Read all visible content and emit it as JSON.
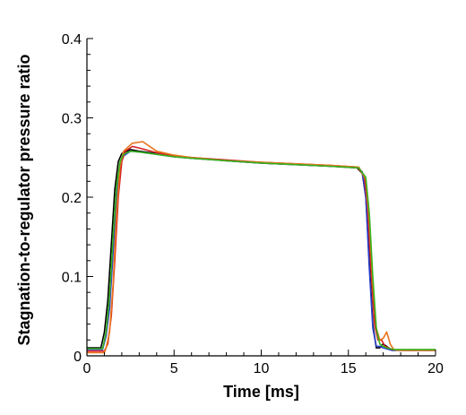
{
  "chart_data": {
    "type": "line",
    "title": "",
    "xlabel": "Time [ms]",
    "ylabel": "Stagnation-to-regulator pressure ratio",
    "xlim": [
      0,
      20
    ],
    "ylim": [
      0,
      0.4
    ],
    "x_major_ticks": [
      0,
      5,
      10,
      15,
      20
    ],
    "x_tick_labels": [
      "0",
      "5",
      "10",
      "15",
      "20"
    ],
    "y_major_ticks": [
      0,
      0.1,
      0.2,
      0.3,
      0.4
    ],
    "y_tick_labels": [
      "0",
      "0.1",
      "0.2",
      "0.3",
      "0.4"
    ],
    "grid": false,
    "legend": "none",
    "series": [
      {
        "color": "#000000",
        "x": [
          0,
          0.8,
          1.0,
          1.2,
          1.4,
          1.6,
          1.8,
          2.0,
          2.5,
          3.0,
          4.0,
          5.0,
          6.0,
          8.0,
          10.0,
          12.0,
          14.0,
          15.5,
          15.8,
          16.0,
          16.2,
          16.4,
          16.6,
          16.8,
          17.0,
          17.5,
          18.0,
          20.0
        ],
        "y": [
          0.01,
          0.01,
          0.03,
          0.07,
          0.14,
          0.21,
          0.245,
          0.255,
          0.26,
          0.258,
          0.255,
          0.252,
          0.25,
          0.246,
          0.243,
          0.241,
          0.239,
          0.237,
          0.23,
          0.2,
          0.12,
          0.04,
          0.01,
          0.01,
          0.015,
          0.007,
          0.007,
          0.007
        ]
      },
      {
        "color": "#2b3fcf",
        "x": [
          0,
          0.9,
          1.1,
          1.3,
          1.5,
          1.7,
          1.9,
          2.1,
          2.5,
          3.0,
          4.0,
          5.0,
          6.0,
          8.0,
          10.0,
          12.0,
          14.0,
          15.5,
          15.8,
          16.0,
          16.2,
          16.4,
          16.6,
          16.8,
          17.0,
          17.5,
          18.0,
          20.0
        ],
        "y": [
          0.008,
          0.008,
          0.025,
          0.06,
          0.13,
          0.2,
          0.242,
          0.252,
          0.258,
          0.257,
          0.254,
          0.251,
          0.249,
          0.246,
          0.243,
          0.241,
          0.239,
          0.238,
          0.232,
          0.2,
          0.11,
          0.035,
          0.012,
          0.012,
          0.01,
          0.007,
          0.007,
          0.007
        ]
      },
      {
        "color": "#d42020",
        "x": [
          0,
          1.0,
          1.2,
          1.4,
          1.6,
          1.8,
          2.0,
          2.2,
          2.6,
          3.0,
          4.0,
          5.0,
          6.0,
          8.0,
          10.0,
          12.0,
          14.0,
          15.5,
          15.9,
          16.1,
          16.3,
          16.5,
          16.7,
          16.9,
          17.1,
          17.5,
          18.0,
          20.0
        ],
        "y": [
          0.006,
          0.006,
          0.015,
          0.05,
          0.12,
          0.2,
          0.245,
          0.258,
          0.264,
          0.262,
          0.256,
          0.252,
          0.25,
          0.247,
          0.244,
          0.242,
          0.24,
          0.238,
          0.228,
          0.19,
          0.11,
          0.04,
          0.02,
          0.02,
          0.012,
          0.008,
          0.007,
          0.007
        ]
      },
      {
        "color": "#e8741c",
        "x": [
          0,
          1.0,
          1.1,
          1.3,
          1.5,
          1.7,
          1.9,
          2.1,
          2.6,
          3.2,
          4.0,
          5.0,
          6.0,
          8.0,
          10.0,
          12.0,
          14.0,
          15.6,
          16.0,
          16.2,
          16.4,
          16.6,
          16.8,
          17.0,
          17.2,
          17.4,
          17.6,
          17.8,
          18.0,
          20.0
        ],
        "y": [
          0.004,
          0.004,
          0.01,
          0.03,
          0.09,
          0.18,
          0.24,
          0.258,
          0.268,
          0.27,
          0.258,
          0.253,
          0.25,
          0.246,
          0.244,
          0.242,
          0.24,
          0.238,
          0.222,
          0.17,
          0.09,
          0.035,
          0.02,
          0.022,
          0.03,
          0.015,
          0.008,
          0.007,
          0.007,
          0.007
        ]
      },
      {
        "color": "#38b21c",
        "x": [
          0,
          0.9,
          1.1,
          1.3,
          1.5,
          1.7,
          1.9,
          2.1,
          2.5,
          3.0,
          4.0,
          5.0,
          6.0,
          8.0,
          10.0,
          12.0,
          14.0,
          15.6,
          16.0,
          16.2,
          16.4,
          16.6,
          16.8,
          17.0,
          17.2,
          17.6,
          18.0,
          20.0
        ],
        "y": [
          0.009,
          0.009,
          0.03,
          0.075,
          0.15,
          0.215,
          0.245,
          0.254,
          0.258,
          0.257,
          0.254,
          0.251,
          0.249,
          0.246,
          0.243,
          0.241,
          0.239,
          0.237,
          0.225,
          0.18,
          0.1,
          0.035,
          0.015,
          0.012,
          0.01,
          0.008,
          0.008,
          0.008
        ]
      }
    ]
  }
}
